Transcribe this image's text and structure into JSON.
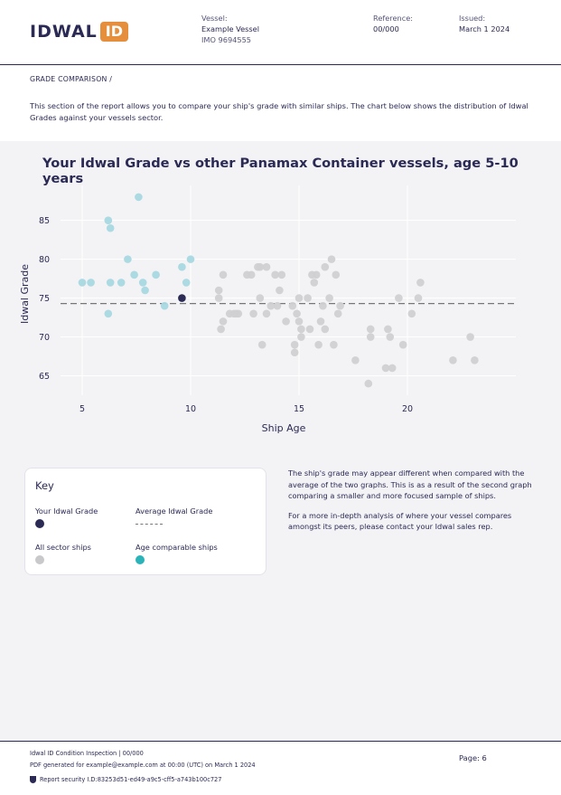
{
  "header": {
    "logo_text": "IDWAL",
    "logo_badge": "ID",
    "vessel_label": "Vessel:",
    "vessel_name": "Example Vessel",
    "vessel_imo": "IMO 9694555",
    "reference_label": "Reference:",
    "reference_value": "00/000",
    "issued_label": "Issued:",
    "issued_value": "March 1 2024"
  },
  "section": {
    "title": "GRADE COMPARISON /",
    "intro": "This section of the report allows you to compare your ship's grade with similar ships. The chart below shows the distribution of Idwal Grades against your vessels sector."
  },
  "chart_data": {
    "type": "scatter",
    "title": "Your Idwal Grade vs other Panamax Container vessels, age 5-10 years",
    "xlabel": "Ship Age",
    "ylabel": "Idwal Grade",
    "xlim": [
      4,
      25
    ],
    "ylim": [
      62.5,
      89.5
    ],
    "x_ticks": [
      5,
      10,
      15,
      20
    ],
    "y_ticks": [
      65,
      70,
      75,
      80,
      85
    ],
    "grid": true,
    "average": 74.3,
    "colors": {
      "all": "#d0d0d2",
      "age": "#a7d8e0",
      "yours": "#2b2a55",
      "avg": "#777777"
    },
    "series": [
      {
        "name": "All sector ships",
        "points": [
          [
            11.3,
            76
          ],
          [
            11.3,
            75
          ],
          [
            11.4,
            71
          ],
          [
            11.5,
            72
          ],
          [
            11.5,
            78
          ],
          [
            11.8,
            73
          ],
          [
            12,
            73
          ],
          [
            12.1,
            73
          ],
          [
            12.2,
            73
          ],
          [
            12.6,
            78
          ],
          [
            12.8,
            78
          ],
          [
            12.9,
            73
          ],
          [
            13.1,
            79
          ],
          [
            13.2,
            79
          ],
          [
            13.2,
            75
          ],
          [
            13.3,
            69
          ],
          [
            13.5,
            79
          ],
          [
            13.5,
            73
          ],
          [
            13.7,
            74
          ],
          [
            13.9,
            78
          ],
          [
            14,
            74
          ],
          [
            14.1,
            76
          ],
          [
            14.2,
            78
          ],
          [
            14.4,
            72
          ],
          [
            14.7,
            74
          ],
          [
            14.8,
            69
          ],
          [
            14.8,
            68
          ],
          [
            14.9,
            73
          ],
          [
            15,
            75
          ],
          [
            15,
            72
          ],
          [
            15.1,
            71
          ],
          [
            15.1,
            70
          ],
          [
            15.4,
            75
          ],
          [
            15.5,
            71
          ],
          [
            15.6,
            78
          ],
          [
            15.7,
            77
          ],
          [
            15.8,
            78
          ],
          [
            15.9,
            69
          ],
          [
            16,
            72
          ],
          [
            16.1,
            74
          ],
          [
            16.2,
            71
          ],
          [
            16.2,
            79
          ],
          [
            16.4,
            75
          ],
          [
            16.5,
            80
          ],
          [
            16.6,
            69
          ],
          [
            16.7,
            78
          ],
          [
            16.8,
            73
          ],
          [
            16.9,
            74
          ],
          [
            17.6,
            67
          ],
          [
            18.2,
            64
          ],
          [
            18.3,
            70
          ],
          [
            18.3,
            71
          ],
          [
            19,
            66
          ],
          [
            19.1,
            71
          ],
          [
            19.2,
            70
          ],
          [
            19.3,
            66
          ],
          [
            19.6,
            75
          ],
          [
            19.8,
            69
          ],
          [
            20.2,
            73
          ],
          [
            20.5,
            75
          ],
          [
            20.6,
            77
          ],
          [
            22.1,
            67
          ],
          [
            22.9,
            70
          ],
          [
            23.1,
            67
          ]
        ]
      },
      {
        "name": "Age comparable ships",
        "points": [
          [
            5,
            77
          ],
          [
            5.4,
            77
          ],
          [
            6.2,
            85
          ],
          [
            6.2,
            73
          ],
          [
            6.3,
            84
          ],
          [
            6.3,
            77
          ],
          [
            6.8,
            77
          ],
          [
            7.1,
            80
          ],
          [
            7.4,
            78
          ],
          [
            7.6,
            88
          ],
          [
            7.8,
            77
          ],
          [
            7.9,
            76
          ],
          [
            8.4,
            78
          ],
          [
            8.8,
            74
          ],
          [
            9.6,
            79
          ],
          [
            9.8,
            77
          ],
          [
            10,
            80
          ]
        ]
      },
      {
        "name": "Your Idwal Grade",
        "points": [
          [
            9.6,
            75
          ]
        ]
      }
    ]
  },
  "key": {
    "title": "Key",
    "your_grade": "Your Idwal Grade",
    "average_grade": "Average Idwal Grade",
    "sector_ships": "All sector ships",
    "age_ships": "Age comparable ships"
  },
  "notes": {
    "p1": "The ship's grade may appear different when compared with the average of the two graphs. This is as a result of the second graph comparing a smaller and more focused sample of ships.",
    "p2": "For a more in-depth analysis of where your vessel compares amongst its peers, please contact your Idwal sales rep."
  },
  "footer": {
    "line1": "Idwal ID Condition Inspection | 00/000",
    "line2": "PDF generated for example@example.com at 00:00 (UTC) on March 1 2024",
    "security": "Report security I.D:83253d51-ed49-a9c5-cff5-a743b100c727",
    "page": "Page: 6"
  }
}
